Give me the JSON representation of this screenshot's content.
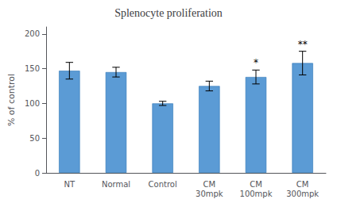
{
  "chart_data": {
    "type": "bar",
    "title": "Splenocyte proliferation",
    "ylabel": "% of control",
    "categories": [
      "NT",
      "Normal",
      "Control",
      "CM\n30mpk",
      "CM\n100mpk",
      "CM\n300mpk"
    ],
    "values": [
      147,
      145,
      100,
      125,
      138,
      158
    ],
    "errors": [
      12,
      7,
      3,
      7,
      10,
      17
    ],
    "annotations": [
      null,
      null,
      null,
      null,
      "*",
      "**"
    ],
    "color": "#5b9bd5",
    "ylim": [
      0,
      210
    ],
    "yticks": [
      0,
      50,
      100,
      150,
      200
    ],
    "grid": false
  }
}
